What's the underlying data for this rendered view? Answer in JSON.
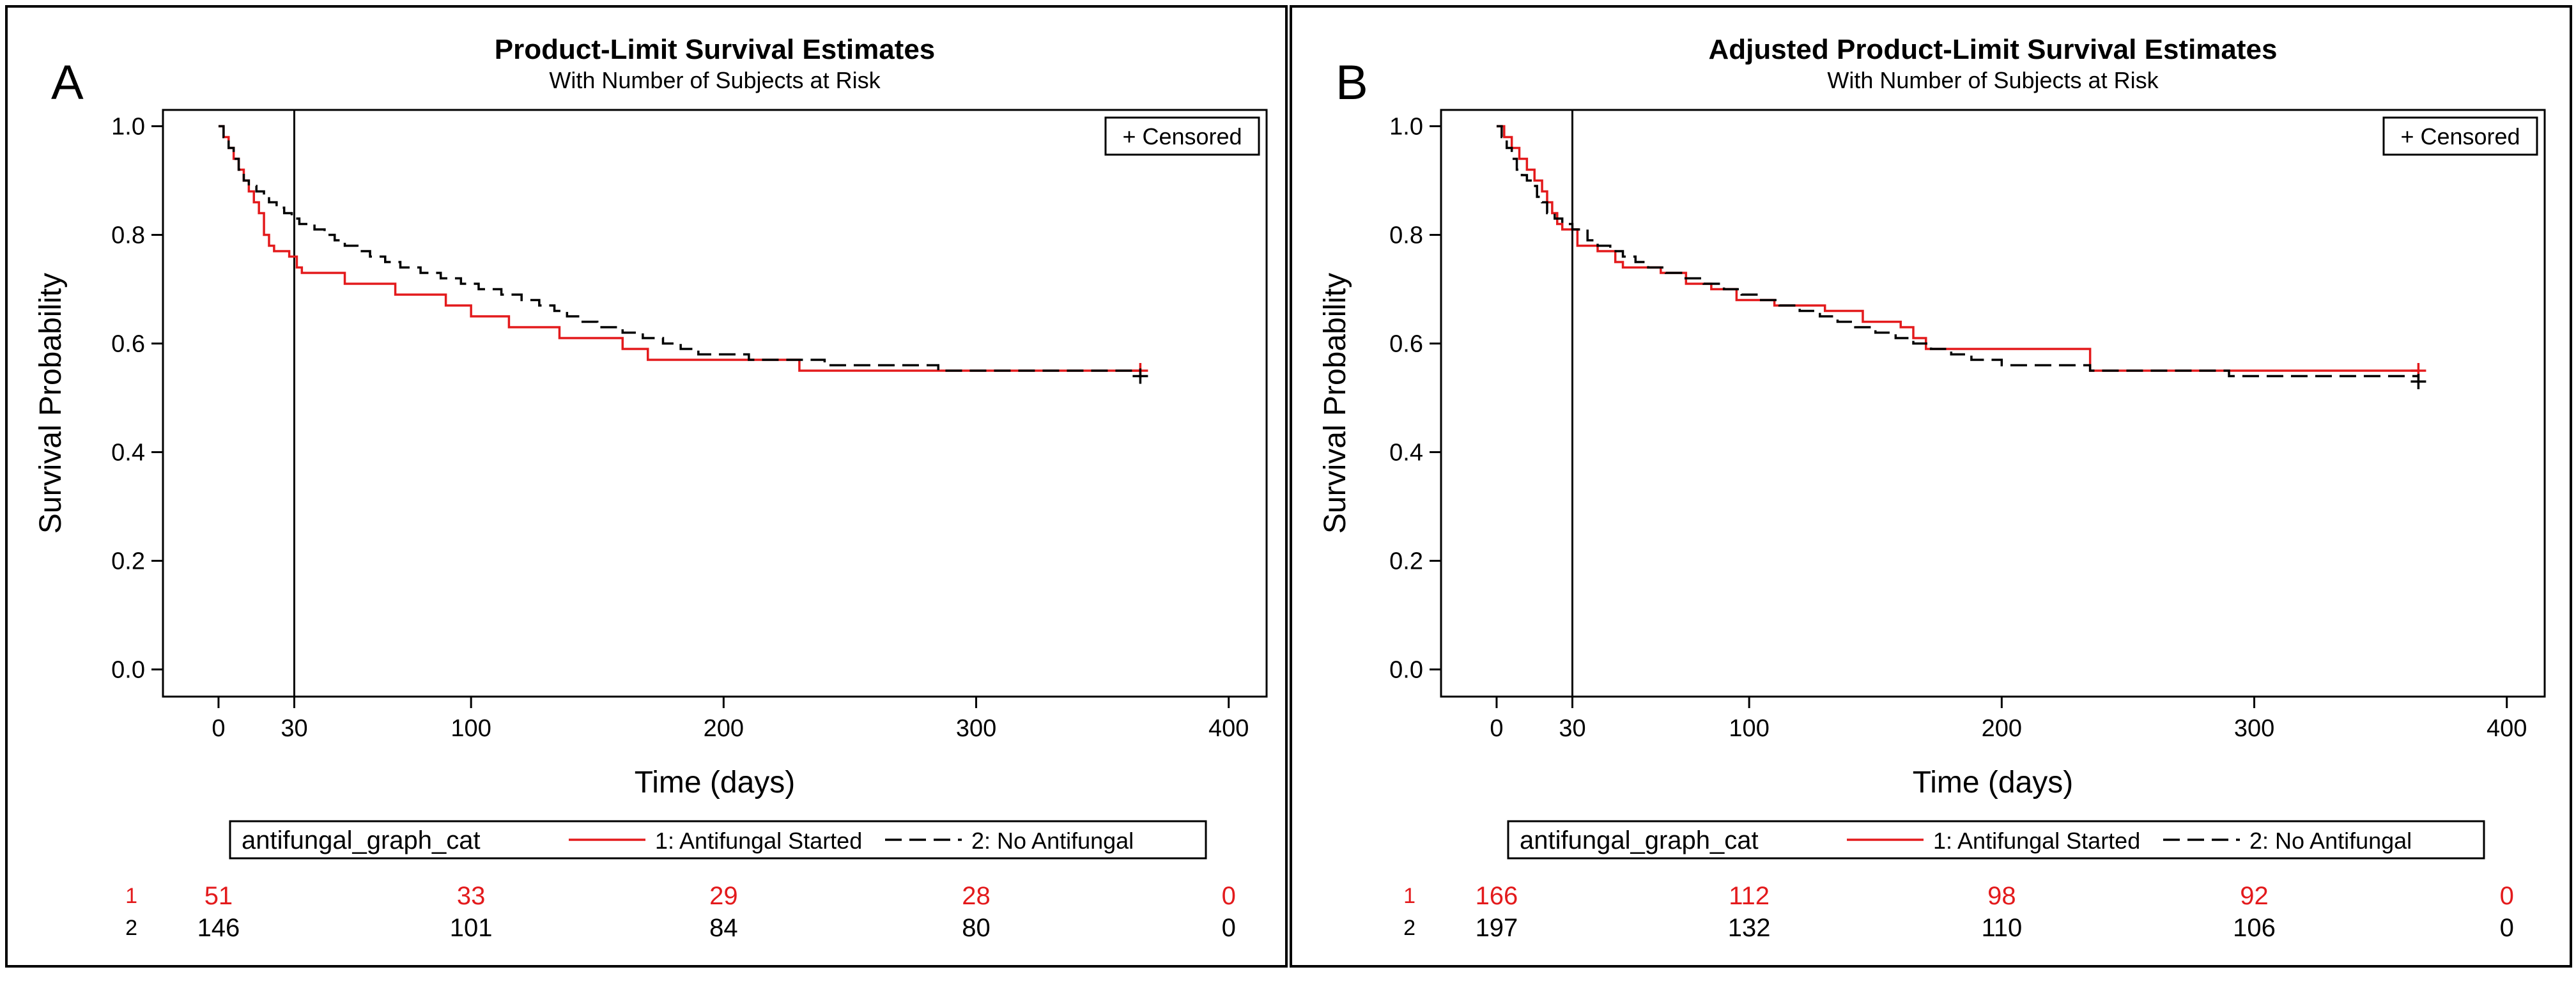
{
  "chart_data": [
    {
      "type": "line",
      "panel_letter": "A",
      "title": "Product-Limit Survival Estimates",
      "subtitle": "With Number of Subjects at Risk",
      "xlabel": "Time (days)",
      "ylabel": "Survival Probability",
      "xlim": [
        -22,
        415
      ],
      "ylim": [
        -0.05,
        1.03
      ],
      "xticks": [
        0,
        30,
        100,
        200,
        300,
        400
      ],
      "yticks": [
        "0.0",
        "0.2",
        "0.4",
        "0.6",
        "0.8",
        "1.0"
      ],
      "reference_line_x": 30,
      "censored_label": "+ Censored",
      "legend_title": "antifungal_graph_cat",
      "series": [
        {
          "name": "1: Antifungal Started",
          "color": "#e31a1c",
          "dash": "solid",
          "points": [
            [
              0,
              1.0
            ],
            [
              2,
              0.98
            ],
            [
              4,
              0.96
            ],
            [
              6,
              0.94
            ],
            [
              8,
              0.92
            ],
            [
              10,
              0.9
            ],
            [
              12,
              0.88
            ],
            [
              14,
              0.86
            ],
            [
              16,
              0.84
            ],
            [
              18,
              0.8
            ],
            [
              20,
              0.78
            ],
            [
              22,
              0.77
            ],
            [
              28,
              0.76
            ],
            [
              31,
              0.74
            ],
            [
              33,
              0.73
            ],
            [
              50,
              0.71
            ],
            [
              70,
              0.69
            ],
            [
              90,
              0.67
            ],
            [
              100,
              0.65
            ],
            [
              115,
              0.63
            ],
            [
              135,
              0.61
            ],
            [
              160,
              0.59
            ],
            [
              170,
              0.57
            ],
            [
              215,
              0.57
            ],
            [
              230,
              0.55
            ],
            [
              365,
              0.55
            ]
          ],
          "censored": [
            [
              365,
              0.55
            ]
          ]
        },
        {
          "name": "2: No Antifungal",
          "color": "#000000",
          "dash": "dashed",
          "points": [
            [
              0,
              1.0
            ],
            [
              2,
              0.98
            ],
            [
              4,
              0.96
            ],
            [
              6,
              0.94
            ],
            [
              8,
              0.92
            ],
            [
              10,
              0.9
            ],
            [
              12,
              0.89
            ],
            [
              15,
              0.88
            ],
            [
              18,
              0.87
            ],
            [
              20,
              0.86
            ],
            [
              23,
              0.85
            ],
            [
              26,
              0.84
            ],
            [
              29,
              0.83
            ],
            [
              32,
              0.82
            ],
            [
              38,
              0.81
            ],
            [
              42,
              0.8
            ],
            [
              46,
              0.79
            ],
            [
              50,
              0.78
            ],
            [
              55,
              0.77
            ],
            [
              60,
              0.76
            ],
            [
              66,
              0.75
            ],
            [
              72,
              0.74
            ],
            [
              80,
              0.73
            ],
            [
              88,
              0.72
            ],
            [
              96,
              0.71
            ],
            [
              103,
              0.7
            ],
            [
              112,
              0.69
            ],
            [
              120,
              0.68
            ],
            [
              127,
              0.67
            ],
            [
              133,
              0.66
            ],
            [
              138,
              0.65
            ],
            [
              143,
              0.64
            ],
            [
              150,
              0.63
            ],
            [
              160,
              0.62
            ],
            [
              168,
              0.61
            ],
            [
              176,
              0.6
            ],
            [
              183,
              0.59
            ],
            [
              190,
              0.58
            ],
            [
              205,
              0.58
            ],
            [
              210,
              0.57
            ],
            [
              235,
              0.57
            ],
            [
              240,
              0.56
            ],
            [
              280,
              0.56
            ],
            [
              285,
              0.55
            ],
            [
              365,
              0.55
            ]
          ],
          "censored": [
            [
              365,
              0.54
            ]
          ]
        }
      ],
      "risk_table": {
        "times": [
          0,
          100,
          200,
          300,
          400
        ],
        "rows": [
          {
            "label": "1",
            "color": "#e31a1c",
            "values": [
              "51",
              "33",
              "29",
              "28",
              "0"
            ]
          },
          {
            "label": "2",
            "color": "#000000",
            "values": [
              "146",
              "101",
              "84",
              "80",
              "0"
            ]
          }
        ]
      }
    },
    {
      "type": "line",
      "panel_letter": "B",
      "title": "Adjusted Product-Limit Survival Estimates",
      "subtitle": "With Number of Subjects at Risk",
      "xlabel": "Time (days)",
      "ylabel": "Survival Probability",
      "xlim": [
        -22,
        415
      ],
      "ylim": [
        -0.05,
        1.03
      ],
      "xticks": [
        0,
        30,
        100,
        200,
        300,
        400
      ],
      "yticks": [
        "0.0",
        "0.2",
        "0.4",
        "0.6",
        "0.8",
        "1.0"
      ],
      "reference_line_x": 30,
      "censored_label": "+ Censored",
      "legend_title": "antifungal_graph_cat",
      "series": [
        {
          "name": "1: Antifungal Started",
          "color": "#e31a1c",
          "dash": "solid",
          "points": [
            [
              0,
              1.0
            ],
            [
              3,
              0.98
            ],
            [
              6,
              0.96
            ],
            [
              9,
              0.94
            ],
            [
              12,
              0.92
            ],
            [
              15,
              0.9
            ],
            [
              18,
              0.88
            ],
            [
              20,
              0.86
            ],
            [
              22,
              0.84
            ],
            [
              24,
              0.82
            ],
            [
              26,
              0.81
            ],
            [
              32,
              0.78
            ],
            [
              40,
              0.77
            ],
            [
              47,
              0.75
            ],
            [
              50,
              0.74
            ],
            [
              65,
              0.73
            ],
            [
              75,
              0.71
            ],
            [
              85,
              0.7
            ],
            [
              95,
              0.68
            ],
            [
              110,
              0.67
            ],
            [
              130,
              0.66
            ],
            [
              145,
              0.64
            ],
            [
              160,
              0.63
            ],
            [
              165,
              0.61
            ],
            [
              170,
              0.59
            ],
            [
              233,
              0.59
            ],
            [
              235,
              0.55
            ],
            [
              365,
              0.55
            ]
          ],
          "censored": [
            [
              365,
              0.55
            ]
          ]
        },
        {
          "name": "2: No Antifungal",
          "color": "#000000",
          "dash": "dashed",
          "points": [
            [
              0,
              1.0
            ],
            [
              2,
              0.98
            ],
            [
              4,
              0.96
            ],
            [
              6,
              0.94
            ],
            [
              8,
              0.92
            ],
            [
              10,
              0.91
            ],
            [
              12,
              0.9
            ],
            [
              14,
              0.89
            ],
            [
              16,
              0.87
            ],
            [
              18,
              0.86
            ],
            [
              20,
              0.84
            ],
            [
              23,
              0.83
            ],
            [
              26,
              0.82
            ],
            [
              30,
              0.81
            ],
            [
              36,
              0.79
            ],
            [
              40,
              0.78
            ],
            [
              45,
              0.77
            ],
            [
              50,
              0.76
            ],
            [
              55,
              0.75
            ],
            [
              60,
              0.74
            ],
            [
              67,
              0.73
            ],
            [
              74,
              0.72
            ],
            [
              82,
              0.71
            ],
            [
              90,
              0.7
            ],
            [
              97,
              0.69
            ],
            [
              104,
              0.68
            ],
            [
              112,
              0.67
            ],
            [
              120,
              0.66
            ],
            [
              128,
              0.65
            ],
            [
              135,
              0.64
            ],
            [
              142,
              0.63
            ],
            [
              150,
              0.62
            ],
            [
              158,
              0.61
            ],
            [
              165,
              0.6
            ],
            [
              172,
              0.59
            ],
            [
              180,
              0.58
            ],
            [
              188,
              0.57
            ],
            [
              200,
              0.56
            ],
            [
              230,
              0.56
            ],
            [
              235,
              0.55
            ],
            [
              285,
              0.55
            ],
            [
              290,
              0.54
            ],
            [
              365,
              0.54
            ]
          ],
          "censored": [
            [
              365,
              0.53
            ]
          ]
        }
      ],
      "risk_table": {
        "times": [
          0,
          100,
          200,
          300,
          400
        ],
        "rows": [
          {
            "label": "1",
            "color": "#e31a1c",
            "values": [
              "166",
              "112",
              "98",
              "92",
              "0"
            ]
          },
          {
            "label": "2",
            "color": "#000000",
            "values": [
              "197",
              "132",
              "110",
              "106",
              "0"
            ]
          }
        ]
      }
    }
  ]
}
